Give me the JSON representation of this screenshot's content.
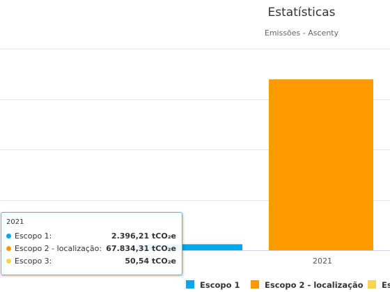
{
  "chart_data": {
    "type": "bar",
    "title": "Estatísticas",
    "subtitle": "Emissões - Ascenty",
    "categories": [
      "2021"
    ],
    "series": [
      {
        "name": "Escopo 1",
        "values": [
          2396.21
        ],
        "color": "#00a9e8"
      },
      {
        "name": "Escopo 2 - localização",
        "values": [
          67834.31
        ],
        "color": "#ff9900"
      },
      {
        "name": "Escopo 3",
        "values": [
          50.54
        ],
        "color": "#f9d649"
      }
    ],
    "ylim": [
      0,
      80000
    ],
    "grid": true,
    "legend_position": "bottom"
  },
  "tooltip": {
    "header": "2021",
    "rows": [
      {
        "label": "Escopo 1:",
        "value": "2.396,21 tCO₂e",
        "color": "#00a9e8"
      },
      {
        "label": "Escopo 2 - localização:",
        "value": "67.834,31 tCO₂e",
        "color": "#ff9900"
      },
      {
        "label": "Escopo 3:",
        "value": "50,54 tCO₂e",
        "color": "#f9d649"
      }
    ]
  },
  "legend": [
    {
      "label": "Escopo 1",
      "color": "#00a9e8"
    },
    {
      "label": "Escopo 2 - localização",
      "color": "#ff9900"
    },
    {
      "label": "Es",
      "color": "#f9d649"
    }
  ]
}
